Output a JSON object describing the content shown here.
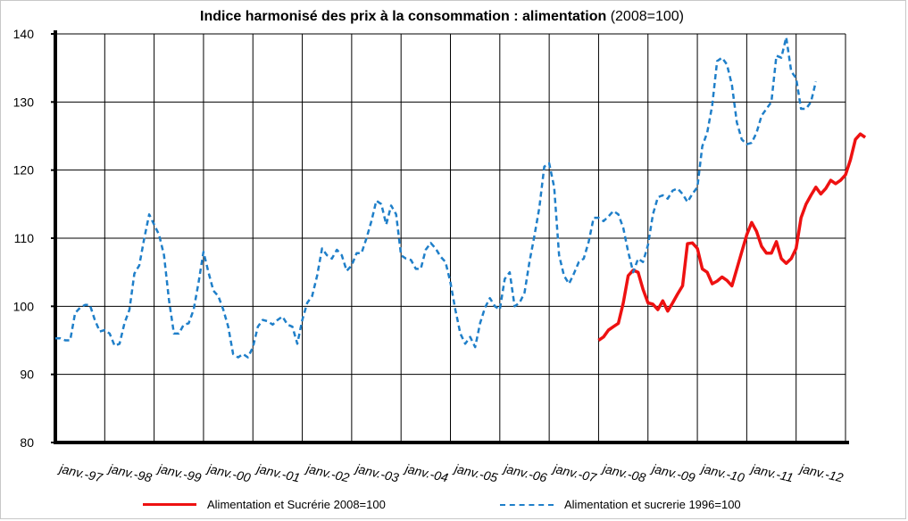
{
  "title": {
    "main": "Indice harmonisé des prix à la consommation : alimentation",
    "sub": "(2008=100)"
  },
  "chart_data": {
    "type": "line",
    "title": "Indice harmonisé des prix à la consommation : alimentation (2008=100)",
    "xlabel": "",
    "ylabel": "",
    "x_unit": "year",
    "xlim": [
      1997,
      2013
    ],
    "ylim": [
      80,
      140
    ],
    "yticks": [
      80,
      90,
      100,
      110,
      120,
      130,
      140
    ],
    "grid": true,
    "legend_position": "bottom",
    "x_tick_labels": [
      "janv.-97",
      "janv.-98",
      "janv.-99",
      "janv.-00",
      "janv.-01",
      "janv.-02",
      "janv.-03",
      "janv.-04",
      "janv.-05",
      "janv.-06",
      "janv.-07",
      "janv.-08",
      "janv.-09",
      "janv.-10",
      "janv.-11",
      "janv.-12"
    ],
    "series": [
      {
        "name": "Alimentation et Sucrérie 2008=100",
        "color": "#ee1111",
        "style": "solid",
        "points": [
          [
            2008.0,
            95.0
          ],
          [
            2008.1,
            95.5
          ],
          [
            2008.2,
            96.5
          ],
          [
            2008.3,
            97.0
          ],
          [
            2008.4,
            97.5
          ],
          [
            2008.5,
            100.5
          ],
          [
            2008.6,
            104.5
          ],
          [
            2008.7,
            105.3
          ],
          [
            2008.8,
            105.0
          ],
          [
            2008.9,
            102.5
          ],
          [
            2009.0,
            100.5
          ],
          [
            2009.1,
            100.3
          ],
          [
            2009.2,
            99.5
          ],
          [
            2009.3,
            100.8
          ],
          [
            2009.4,
            99.3
          ],
          [
            2009.5,
            100.5
          ],
          [
            2009.6,
            101.8
          ],
          [
            2009.7,
            103.0
          ],
          [
            2009.8,
            109.2
          ],
          [
            2009.9,
            109.3
          ],
          [
            2010.0,
            108.5
          ],
          [
            2010.1,
            105.5
          ],
          [
            2010.2,
            105.0
          ],
          [
            2010.3,
            103.3
          ],
          [
            2010.4,
            103.7
          ],
          [
            2010.5,
            104.3
          ],
          [
            2010.6,
            103.8
          ],
          [
            2010.7,
            103.0
          ],
          [
            2010.8,
            105.5
          ],
          [
            2010.9,
            108.0
          ],
          [
            2011.0,
            110.5
          ],
          [
            2011.1,
            112.3
          ],
          [
            2011.2,
            111.0
          ],
          [
            2011.3,
            108.8
          ],
          [
            2011.4,
            107.8
          ],
          [
            2011.5,
            107.8
          ],
          [
            2011.6,
            109.5
          ],
          [
            2011.7,
            107.0
          ],
          [
            2011.8,
            106.3
          ],
          [
            2011.9,
            107.0
          ],
          [
            2012.0,
            108.5
          ],
          [
            2012.1,
            113.0
          ],
          [
            2012.2,
            115.0
          ],
          [
            2012.3,
            116.3
          ],
          [
            2012.4,
            117.5
          ],
          [
            2012.5,
            116.5
          ],
          [
            2012.6,
            117.3
          ],
          [
            2012.7,
            118.5
          ],
          [
            2012.8,
            118.0
          ],
          [
            2012.9,
            118.5
          ],
          [
            2013.0,
            119.3
          ],
          [
            2013.1,
            121.5
          ],
          [
            2013.2,
            124.5
          ],
          [
            2013.3,
            125.3
          ],
          [
            2013.4,
            124.8
          ]
        ]
      },
      {
        "name": "Alimentation et sucrerie 1996=100",
        "color": "#1f7fc9",
        "style": "dashed",
        "points": [
          [
            1997.0,
            95.3
          ],
          [
            1997.1,
            95.3
          ],
          [
            1997.2,
            95.0
          ],
          [
            1997.3,
            95.0
          ],
          [
            1997.4,
            99.0
          ],
          [
            1997.5,
            99.8
          ],
          [
            1997.6,
            100.2
          ],
          [
            1997.7,
            100.2
          ],
          [
            1997.8,
            98.0
          ],
          [
            1997.9,
            96.3
          ],
          [
            1998.0,
            96.5
          ],
          [
            1998.1,
            96.0
          ],
          [
            1998.2,
            94.2
          ],
          [
            1998.3,
            94.5
          ],
          [
            1998.4,
            97.5
          ],
          [
            1998.5,
            99.5
          ],
          [
            1998.6,
            104.8
          ],
          [
            1998.7,
            106.0
          ],
          [
            1998.8,
            110.0
          ],
          [
            1998.9,
            113.5
          ],
          [
            1999.0,
            112.0
          ],
          [
            1999.1,
            110.5
          ],
          [
            1999.2,
            107.5
          ],
          [
            1999.3,
            101.0
          ],
          [
            1999.4,
            96.0
          ],
          [
            1999.5,
            96.0
          ],
          [
            1999.6,
            97.3
          ],
          [
            1999.7,
            97.5
          ],
          [
            1999.8,
            99.5
          ],
          [
            1999.9,
            103.5
          ],
          [
            2000.0,
            108.0
          ],
          [
            2000.1,
            105.0
          ],
          [
            2000.2,
            102.3
          ],
          [
            2000.3,
            101.5
          ],
          [
            2000.4,
            99.5
          ],
          [
            2000.5,
            97.0
          ],
          [
            2000.6,
            93.0
          ],
          [
            2000.7,
            92.5
          ],
          [
            2000.8,
            93.0
          ],
          [
            2000.9,
            92.5
          ],
          [
            2001.0,
            94.0
          ],
          [
            2001.1,
            97.0
          ],
          [
            2001.2,
            98.0
          ],
          [
            2001.3,
            97.8
          ],
          [
            2001.4,
            97.3
          ],
          [
            2001.5,
            98.0
          ],
          [
            2001.6,
            98.5
          ],
          [
            2001.7,
            97.3
          ],
          [
            2001.8,
            97.0
          ],
          [
            2001.9,
            94.5
          ],
          [
            2002.0,
            98.0
          ],
          [
            2002.1,
            100.5
          ],
          [
            2002.2,
            101.5
          ],
          [
            2002.3,
            104.5
          ],
          [
            2002.4,
            108.5
          ],
          [
            2002.5,
            107.5
          ],
          [
            2002.6,
            107.0
          ],
          [
            2002.7,
            108.3
          ],
          [
            2002.8,
            107.5
          ],
          [
            2002.9,
            105.2
          ],
          [
            2003.0,
            106.0
          ],
          [
            2003.1,
            107.8
          ],
          [
            2003.2,
            107.8
          ],
          [
            2003.3,
            110.0
          ],
          [
            2003.4,
            112.5
          ],
          [
            2003.5,
            115.5
          ],
          [
            2003.6,
            115.0
          ],
          [
            2003.7,
            112.0
          ],
          [
            2003.8,
            114.8
          ],
          [
            2003.9,
            113.5
          ],
          [
            2004.0,
            107.5
          ],
          [
            2004.1,
            107.0
          ],
          [
            2004.2,
            106.8
          ],
          [
            2004.3,
            105.5
          ],
          [
            2004.4,
            105.5
          ],
          [
            2004.5,
            108.3
          ],
          [
            2004.6,
            109.3
          ],
          [
            2004.7,
            108.5
          ],
          [
            2004.8,
            107.3
          ],
          [
            2004.9,
            106.5
          ],
          [
            2005.0,
            103.5
          ],
          [
            2005.1,
            99.5
          ],
          [
            2005.2,
            96.0
          ],
          [
            2005.3,
            94.5
          ],
          [
            2005.4,
            95.5
          ],
          [
            2005.5,
            94.0
          ],
          [
            2005.6,
            97.5
          ],
          [
            2005.7,
            99.8
          ],
          [
            2005.8,
            101.2
          ],
          [
            2005.9,
            100.0
          ],
          [
            2006.0,
            99.5
          ],
          [
            2006.1,
            104.0
          ],
          [
            2006.2,
            105.0
          ],
          [
            2006.3,
            100.0
          ],
          [
            2006.4,
            100.5
          ],
          [
            2006.5,
            102.0
          ],
          [
            2006.6,
            106.5
          ],
          [
            2006.7,
            110.3
          ],
          [
            2006.8,
            114.5
          ],
          [
            2006.9,
            120.5
          ],
          [
            2007.0,
            121.0
          ],
          [
            2007.1,
            117.5
          ],
          [
            2007.2,
            107.5
          ],
          [
            2007.3,
            104.5
          ],
          [
            2007.4,
            103.3
          ],
          [
            2007.5,
            104.8
          ],
          [
            2007.6,
            106.5
          ],
          [
            2007.7,
            107.0
          ],
          [
            2007.8,
            109.5
          ],
          [
            2007.9,
            113.0
          ],
          [
            2008.0,
            113.0
          ],
          [
            2008.1,
            112.5
          ],
          [
            2008.2,
            113.2
          ],
          [
            2008.3,
            114.0
          ],
          [
            2008.4,
            113.5
          ],
          [
            2008.5,
            111.5
          ],
          [
            2008.6,
            108.0
          ],
          [
            2008.7,
            105.0
          ],
          [
            2008.8,
            107.0
          ],
          [
            2008.9,
            106.5
          ],
          [
            2009.0,
            109.0
          ],
          [
            2009.1,
            113.5
          ],
          [
            2009.2,
            116.0
          ],
          [
            2009.3,
            116.3
          ],
          [
            2009.4,
            115.8
          ],
          [
            2009.5,
            117.0
          ],
          [
            2009.6,
            117.3
          ],
          [
            2009.7,
            116.5
          ],
          [
            2009.8,
            115.3
          ],
          [
            2009.9,
            116.5
          ],
          [
            2010.0,
            117.5
          ],
          [
            2010.1,
            123.5
          ],
          [
            2010.2,
            125.5
          ],
          [
            2010.3,
            129.5
          ],
          [
            2010.4,
            136.0
          ],
          [
            2010.5,
            136.5
          ],
          [
            2010.6,
            135.5
          ],
          [
            2010.7,
            132.5
          ],
          [
            2010.8,
            127.0
          ],
          [
            2010.9,
            124.5
          ],
          [
            2011.0,
            123.8
          ],
          [
            2011.1,
            124.0
          ],
          [
            2011.2,
            125.5
          ],
          [
            2011.3,
            128.0
          ],
          [
            2011.4,
            129.0
          ],
          [
            2011.5,
            130.0
          ],
          [
            2011.6,
            136.8
          ],
          [
            2011.7,
            136.5
          ],
          [
            2011.8,
            139.5
          ],
          [
            2011.9,
            134.5
          ],
          [
            2012.0,
            133.5
          ],
          [
            2012.1,
            129.0
          ],
          [
            2012.2,
            129.0
          ],
          [
            2012.3,
            130.0
          ],
          [
            2012.4,
            133.0
          ]
        ]
      }
    ]
  },
  "legend": {
    "red_label": "Alimentation et Sucrérie 2008=100",
    "blue_label": "Alimentation et sucrerie 1996=100"
  }
}
